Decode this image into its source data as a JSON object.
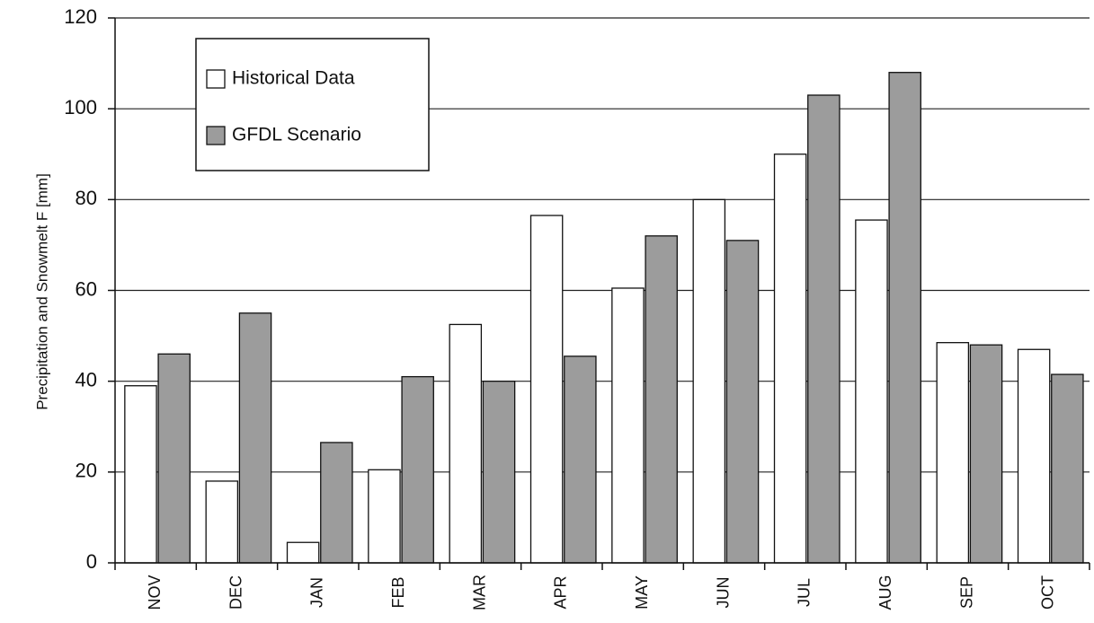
{
  "chart_data": {
    "type": "bar",
    "y_label": "Precipitation and Snowmelt F [mm]",
    "categories": [
      "NOV",
      "DEC",
      "JAN",
      "FEB",
      "MAR",
      "APR",
      "MAY",
      "JUN",
      "JUL",
      "AUG",
      "SEP",
      "OCT"
    ],
    "series": [
      {
        "name": "Historical Data",
        "color": "#ffffff",
        "values": [
          39,
          18,
          4.5,
          20.5,
          52.5,
          76.5,
          60.5,
          80,
          90,
          75.5,
          48.5,
          47
        ]
      },
      {
        "name": "GFDL Scenario",
        "color": "#9c9c9c",
        "values": [
          46,
          55,
          26.5,
          41,
          40,
          45.5,
          72,
          71,
          103,
          108,
          48,
          41.5
        ]
      }
    ],
    "ylim": [
      0,
      120
    ],
    "yticks": [
      0,
      20,
      40,
      60,
      80,
      100,
      120
    ],
    "grid": true,
    "legend": "upper left"
  }
}
